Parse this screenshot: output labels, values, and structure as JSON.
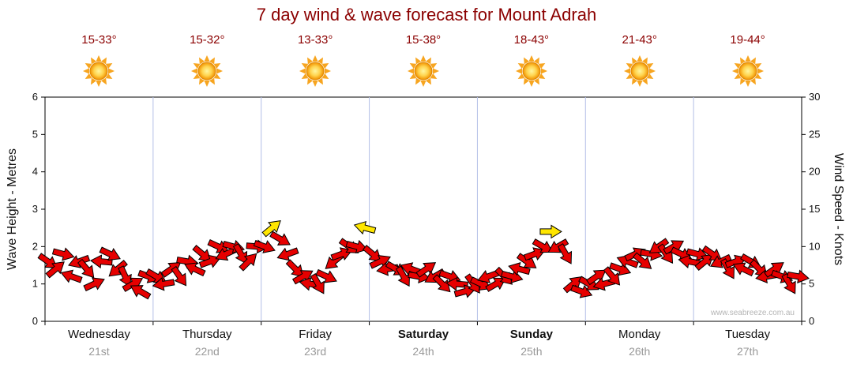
{
  "title": "7 day wind & wave forecast for Mount Adrah",
  "watermark": "www.seabreeze.com.au",
  "chart_data": {
    "type": "scatter",
    "subtype": "wind-arrow-forecast",
    "title": "7 day wind & wave forecast for Mount Adrah",
    "left_axis": {
      "label": "Wave Height - Metres",
      "min": 0,
      "max": 6,
      "ticks": [
        0,
        1,
        2,
        3,
        4,
        5,
        6
      ]
    },
    "right_axis": {
      "label": "Wind Speed - Knots",
      "min": 0,
      "max": 30,
      "ticks": [
        0,
        5,
        10,
        15,
        20,
        25,
        30
      ]
    },
    "grid": "vertical-day-separators",
    "days": [
      {
        "name": "Wednesday",
        "date": "21st",
        "temp": "15-33°",
        "weather": "sunny",
        "weekend": false
      },
      {
        "name": "Thursday",
        "date": "22nd",
        "temp": "15-32°",
        "weather": "sunny",
        "weekend": false
      },
      {
        "name": "Friday",
        "date": "23rd",
        "temp": "13-33°",
        "weather": "sunny",
        "weekend": false
      },
      {
        "name": "Saturday",
        "date": "24th",
        "temp": "15-38°",
        "weather": "sunny",
        "weekend": true
      },
      {
        "name": "Sunday",
        "date": "25th",
        "temp": "18-43°",
        "weather": "sunny",
        "weekend": true
      },
      {
        "name": "Monday",
        "date": "26th",
        "temp": "21-43°",
        "weather": "sunny",
        "weekend": false
      },
      {
        "name": "Tuesday",
        "date": "27th",
        "temp": "19-44°",
        "weather": "sunny",
        "weekend": false
      }
    ],
    "arrow_format": [
      "x_fraction",
      "wind_speed_knots",
      "direction_deg",
      "is_gust_yellow"
    ],
    "arrows": [
      [
        0.004,
        8,
        35,
        0
      ],
      [
        0.014,
        7,
        -40,
        0
      ],
      [
        0.024,
        9,
        15,
        0
      ],
      [
        0.035,
        6,
        200,
        0
      ],
      [
        0.045,
        8,
        160,
        0
      ],
      [
        0.055,
        7,
        50,
        0
      ],
      [
        0.065,
        5,
        -25,
        0
      ],
      [
        0.075,
        8,
        185,
        0
      ],
      [
        0.086,
        9,
        25,
        0
      ],
      [
        0.096,
        7,
        140,
        0
      ],
      [
        0.106,
        6,
        65,
        0
      ],
      [
        0.116,
        5,
        -30,
        0
      ],
      [
        0.126,
        4,
        210,
        0
      ],
      [
        0.137,
        6,
        20,
        0
      ],
      [
        0.147,
        6,
        30,
        0
      ],
      [
        0.157,
        5,
        170,
        0
      ],
      [
        0.167,
        7,
        -35,
        0
      ],
      [
        0.178,
        6,
        55,
        0
      ],
      [
        0.188,
        8,
        10,
        0
      ],
      [
        0.198,
        7,
        205,
        0
      ],
      [
        0.208,
        9,
        40,
        0
      ],
      [
        0.218,
        8,
        -20,
        0
      ],
      [
        0.229,
        10,
        25,
        0
      ],
      [
        0.239,
        9,
        155,
        0
      ],
      [
        0.249,
        10,
        15,
        0
      ],
      [
        0.259,
        9,
        60,
        0
      ],
      [
        0.269,
        8,
        -45,
        0
      ],
      [
        0.28,
        10,
        5,
        0
      ],
      [
        0.29,
        10,
        20,
        0
      ],
      [
        0.3,
        12.5,
        -40,
        1
      ],
      [
        0.311,
        11,
        30,
        0
      ],
      [
        0.321,
        9,
        160,
        0
      ],
      [
        0.331,
        7,
        45,
        0
      ],
      [
        0.341,
        6,
        -30,
        0
      ],
      [
        0.351,
        5,
        190,
        0
      ],
      [
        0.361,
        5,
        60,
        0
      ],
      [
        0.372,
        6,
        25,
        0
      ],
      [
        0.382,
        8,
        140,
        0
      ],
      [
        0.392,
        9,
        -20,
        0
      ],
      [
        0.402,
        10,
        35,
        0
      ],
      [
        0.412,
        10,
        15,
        0
      ],
      [
        0.423,
        12.5,
        195,
        1
      ],
      [
        0.433,
        9,
        40,
        0
      ],
      [
        0.443,
        8,
        -25,
        0
      ],
      [
        0.453,
        7,
        170,
        0
      ],
      [
        0.464,
        7,
        30,
        0
      ],
      [
        0.474,
        6,
        60,
        0
      ],
      [
        0.484,
        7,
        200,
        0
      ],
      [
        0.494,
        6,
        10,
        0
      ],
      [
        0.504,
        7,
        -35,
        0
      ],
      [
        0.515,
        6,
        150,
        0
      ],
      [
        0.525,
        5,
        45,
        0
      ],
      [
        0.535,
        6,
        20,
        0
      ],
      [
        0.545,
        5,
        185,
        0
      ],
      [
        0.555,
        4,
        -15,
        0
      ],
      [
        0.566,
        5,
        55,
        0
      ],
      [
        0.576,
        5,
        25,
        0
      ],
      [
        0.586,
        6,
        160,
        0
      ],
      [
        0.596,
        5,
        -30,
        0
      ],
      [
        0.607,
        6,
        45,
        0
      ],
      [
        0.617,
        6,
        15,
        0
      ],
      [
        0.627,
        7,
        195,
        0
      ],
      [
        0.637,
        8,
        35,
        0
      ],
      [
        0.647,
        9,
        -20,
        0
      ],
      [
        0.658,
        10,
        30,
        0
      ],
      [
        0.668,
        12,
        0,
        1
      ],
      [
        0.678,
        10,
        150,
        0
      ],
      [
        0.688,
        9,
        60,
        0
      ],
      [
        0.698,
        5,
        -40,
        0
      ],
      [
        0.709,
        4,
        20,
        0
      ],
      [
        0.719,
        5,
        30,
        0
      ],
      [
        0.729,
        6,
        -35,
        0
      ],
      [
        0.739,
        5,
        165,
        0
      ],
      [
        0.75,
        6,
        50,
        0
      ],
      [
        0.76,
        7,
        20,
        0
      ],
      [
        0.77,
        8,
        200,
        0
      ],
      [
        0.78,
        9,
        -25,
        0
      ],
      [
        0.79,
        8,
        40,
        0
      ],
      [
        0.801,
        9,
        10,
        0
      ],
      [
        0.811,
        10,
        145,
        0
      ],
      [
        0.821,
        9,
        55,
        0
      ],
      [
        0.831,
        10,
        -30,
        0
      ],
      [
        0.841,
        9,
        25,
        0
      ],
      [
        0.852,
        8,
        190,
        0
      ],
      [
        0.862,
        9,
        15,
        0
      ],
      [
        0.872,
        8,
        -40,
        0
      ],
      [
        0.882,
        9,
        35,
        0
      ],
      [
        0.893,
        8,
        155,
        0
      ],
      [
        0.903,
        7,
        60,
        0
      ],
      [
        0.913,
        8,
        -20,
        0
      ],
      [
        0.923,
        7,
        205,
        0
      ],
      [
        0.933,
        8,
        30,
        0
      ],
      [
        0.944,
        7,
        45,
        0
      ],
      [
        0.954,
        6,
        170,
        0
      ],
      [
        0.964,
        7,
        -35,
        0
      ],
      [
        0.974,
        6,
        20,
        0
      ],
      [
        0.984,
        5,
        60,
        0
      ],
      [
        0.995,
        6,
        10,
        0
      ]
    ],
    "colors": {
      "arrow_red": "#e60000",
      "arrow_yellow": "#ffe600",
      "grid": "#b3bfe6",
      "axis": "#000000",
      "title": "#8b0000",
      "temp_text": "#8b0000",
      "date_text": "#999999",
      "sun_core": "#ffd34d",
      "sun_ray": "#f7a520"
    }
  }
}
